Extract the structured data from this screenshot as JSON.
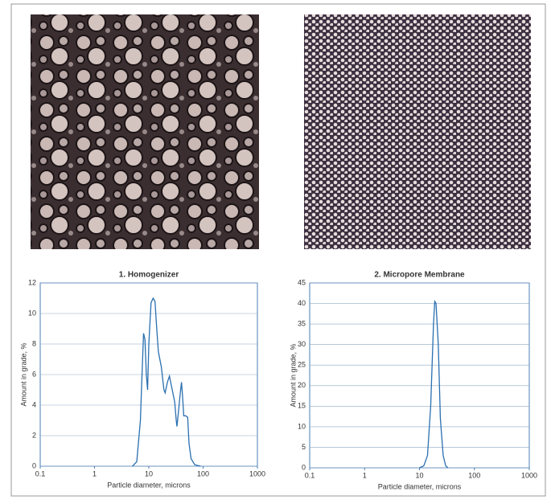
{
  "chart_data": [
    {
      "type": "line",
      "title": "1. Homogenizer",
      "x_label": "Particle diameter, microns",
      "y_label": "Amount in grade, %",
      "x": [
        5,
        6,
        7,
        7.5,
        8,
        8.5,
        9,
        9.5,
        10,
        11,
        12,
        13,
        14,
        15,
        17,
        19,
        20,
        22,
        24,
        27,
        30,
        32,
        33,
        35,
        38,
        40,
        42,
        44,
        48,
        52,
        55,
        60,
        70,
        90
      ],
      "values": [
        0,
        0.3,
        3,
        6,
        8.7,
        8.3,
        6,
        5,
        8,
        10.7,
        11,
        10.8,
        9,
        7.5,
        6.5,
        5,
        4.8,
        5.5,
        5.9,
        5,
        4.2,
        3,
        2.6,
        3.5,
        4.8,
        5.5,
        4.5,
        3.3,
        3.3,
        3.2,
        1.5,
        0.5,
        0.1,
        0
      ],
      "color": "#2a6fb0",
      "xscale": "log",
      "xlim": [
        0.1,
        1000
      ],
      "xticks": [
        0.1,
        1,
        10,
        100,
        1000
      ],
      "ylim": [
        0,
        12
      ],
      "yticks": [
        0,
        2,
        4,
        6,
        8,
        10,
        12
      ],
      "grid": true
    },
    {
      "type": "line",
      "title": "2. Micropore Membrane",
      "x_label": "Particle diameter, microns",
      "y_label": "Amount in grade, %",
      "x": [
        10,
        12,
        14,
        16,
        18,
        19,
        20,
        22,
        24,
        27,
        30,
        33
      ],
      "values": [
        0,
        0.5,
        3,
        15,
        35,
        40.5,
        40,
        30,
        12,
        3,
        0.5,
        0
      ],
      "color": "#2a6fb0",
      "xscale": "log",
      "xlim": [
        0.1,
        1000
      ],
      "xticks": [
        0.1,
        1,
        10,
        100,
        1000
      ],
      "ylim": [
        0,
        45
      ],
      "yticks": [
        0,
        5,
        10,
        15,
        20,
        25,
        30,
        35,
        40,
        45
      ],
      "grid": true
    }
  ]
}
